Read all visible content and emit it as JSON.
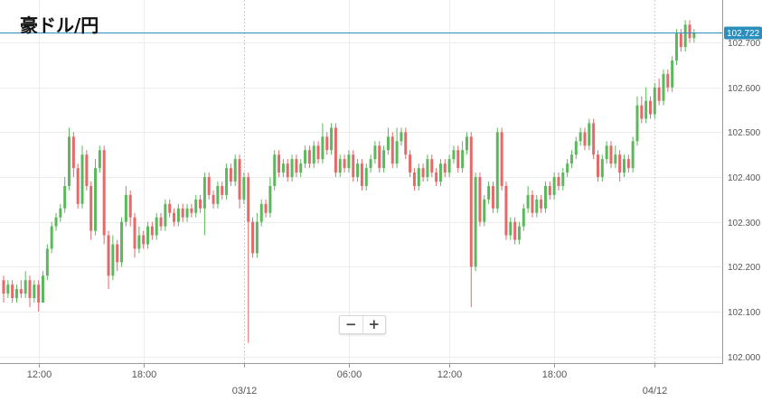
{
  "title": "豪ドル/円",
  "zoom": {
    "minus_label": "−",
    "plus_label": "+"
  },
  "colors": {
    "up": "#5cb85c",
    "down": "#e46a6a",
    "current_line": "#2a8fbd",
    "grid": "#ececec"
  },
  "chart_data": {
    "type": "candlestick",
    "title": "豪ドル/円",
    "ylim": [
      101.985,
      102.795
    ],
    "yticks": [
      "102.000",
      "102.100",
      "102.200",
      "102.300",
      "102.400",
      "102.500",
      "102.600",
      "102.700"
    ],
    "current_price": 102.722,
    "current_price_label": "102.722",
    "x_range": [
      0,
      163
    ],
    "x_ticks": [
      {
        "t": 8,
        "label": "12:00"
      },
      {
        "t": 32,
        "label": "18:00"
      },
      {
        "t": 55,
        "label": "03/12",
        "date": true
      },
      {
        "t": 79,
        "label": "06:00"
      },
      {
        "t": 102,
        "label": "12:00"
      },
      {
        "t": 126,
        "label": "18:00"
      },
      {
        "t": 149,
        "label": "04/12",
        "date": true
      }
    ],
    "grid": true,
    "series": [
      {
        "name": "",
        "candles": [
          [
            102.17,
            102.14,
            102.18,
            102.12
          ],
          [
            102.14,
            102.16,
            102.17,
            102.13
          ],
          [
            102.16,
            102.13,
            102.17,
            102.12
          ],
          [
            102.13,
            102.15,
            102.16,
            102.12
          ],
          [
            102.15,
            102.14,
            102.17,
            102.13
          ],
          [
            102.14,
            102.17,
            102.19,
            102.13
          ],
          [
            102.17,
            102.13,
            102.18,
            102.11
          ],
          [
            102.13,
            102.16,
            102.17,
            102.12
          ],
          [
            102.16,
            102.12,
            102.17,
            102.1
          ],
          [
            102.12,
            102.18,
            102.19,
            102.12
          ],
          [
            102.18,
            102.24,
            102.25,
            102.17
          ],
          [
            102.24,
            102.29,
            102.3,
            102.23
          ],
          [
            102.29,
            102.31,
            102.32,
            102.28
          ],
          [
            102.31,
            102.33,
            102.34,
            102.3
          ],
          [
            102.33,
            102.38,
            102.4,
            102.32
          ],
          [
            102.38,
            102.49,
            102.51,
            102.37
          ],
          [
            102.49,
            102.42,
            102.5,
            102.4
          ],
          [
            102.42,
            102.34,
            102.43,
            102.33
          ],
          [
            102.34,
            102.45,
            102.47,
            102.33
          ],
          [
            102.45,
            102.38,
            102.46,
            102.37
          ],
          [
            102.38,
            102.28,
            102.39,
            102.26
          ],
          [
            102.28,
            102.42,
            102.44,
            102.27
          ],
          [
            102.42,
            102.46,
            102.47,
            102.41
          ],
          [
            102.46,
            102.27,
            102.47,
            102.25
          ],
          [
            102.27,
            102.18,
            102.28,
            102.15
          ],
          [
            102.18,
            102.25,
            102.27,
            102.17
          ],
          [
            102.25,
            102.21,
            102.26,
            102.19
          ],
          [
            102.21,
            102.3,
            102.31,
            102.2
          ],
          [
            102.3,
            102.36,
            102.38,
            102.29
          ],
          [
            102.36,
            102.31,
            102.37,
            102.29
          ],
          [
            102.31,
            102.24,
            102.32,
            102.22
          ],
          [
            102.24,
            102.27,
            102.29,
            102.23
          ],
          [
            102.27,
            102.25,
            102.28,
            102.24
          ],
          [
            102.25,
            102.29,
            102.3,
            102.24
          ],
          [
            102.29,
            102.27,
            102.3,
            102.26
          ],
          [
            102.27,
            102.31,
            102.32,
            102.26
          ],
          [
            102.31,
            102.29,
            102.32,
            102.28
          ],
          [
            102.29,
            102.34,
            102.35,
            102.28
          ],
          [
            102.34,
            102.32,
            102.35,
            102.31
          ],
          [
            102.32,
            102.3,
            102.33,
            102.29
          ],
          [
            102.3,
            102.33,
            102.34,
            102.29
          ],
          [
            102.33,
            102.31,
            102.34,
            102.3
          ],
          [
            102.31,
            102.33,
            102.34,
            102.3
          ],
          [
            102.33,
            102.32,
            102.34,
            102.31
          ],
          [
            102.32,
            102.35,
            102.36,
            102.31
          ],
          [
            102.35,
            102.33,
            102.36,
            102.32
          ],
          [
            102.33,
            102.4,
            102.41,
            102.27
          ],
          [
            102.4,
            102.36,
            102.41,
            102.35
          ],
          [
            102.36,
            102.34,
            102.37,
            102.33
          ],
          [
            102.34,
            102.38,
            102.39,
            102.33
          ],
          [
            102.38,
            102.36,
            102.39,
            102.35
          ],
          [
            102.36,
            102.42,
            102.43,
            102.35
          ],
          [
            102.42,
            102.39,
            102.43,
            102.38
          ],
          [
            102.39,
            102.44,
            102.45,
            102.38
          ],
          [
            102.44,
            102.35,
            102.45,
            102.33
          ],
          [
            102.35,
            102.4,
            102.41,
            102.34
          ],
          [
            102.4,
            102.3,
            102.41,
            102.03
          ],
          [
            102.3,
            102.23,
            102.31,
            102.22
          ],
          [
            102.23,
            102.3,
            102.32,
            102.22
          ],
          [
            102.3,
            102.34,
            102.35,
            102.29
          ],
          [
            102.34,
            102.32,
            102.35,
            102.31
          ],
          [
            102.32,
            102.38,
            102.4,
            102.31
          ],
          [
            102.38,
            102.45,
            102.46,
            102.37
          ],
          [
            102.45,
            102.41,
            102.46,
            102.4
          ],
          [
            102.41,
            102.43,
            102.44,
            102.4
          ],
          [
            102.43,
            102.4,
            102.44,
            102.39
          ],
          [
            102.4,
            102.44,
            102.45,
            102.39
          ],
          [
            102.44,
            102.41,
            102.45,
            102.4
          ],
          [
            102.41,
            102.43,
            102.44,
            102.4
          ],
          [
            102.43,
            102.46,
            102.47,
            102.42
          ],
          [
            102.46,
            102.43,
            102.47,
            102.42
          ],
          [
            102.43,
            102.47,
            102.48,
            102.42
          ],
          [
            102.47,
            102.44,
            102.48,
            102.43
          ],
          [
            102.44,
            102.49,
            102.52,
            102.43
          ],
          [
            102.49,
            102.46,
            102.5,
            102.45
          ],
          [
            102.46,
            102.51,
            102.52,
            102.45
          ],
          [
            102.51,
            102.41,
            102.52,
            102.4
          ],
          [
            102.41,
            102.44,
            102.45,
            102.4
          ],
          [
            102.44,
            102.42,
            102.45,
            102.41
          ],
          [
            102.42,
            102.45,
            102.46,
            102.41
          ],
          [
            102.45,
            102.4,
            102.46,
            102.39
          ],
          [
            102.4,
            102.43,
            102.44,
            102.39
          ],
          [
            102.43,
            102.38,
            102.44,
            102.37
          ],
          [
            102.38,
            102.42,
            102.43,
            102.37
          ],
          [
            102.42,
            102.44,
            102.45,
            102.41
          ],
          [
            102.44,
            102.47,
            102.48,
            102.43
          ],
          [
            102.47,
            102.42,
            102.48,
            102.41
          ],
          [
            102.42,
            102.46,
            102.47,
            102.41
          ],
          [
            102.46,
            102.49,
            102.51,
            102.45
          ],
          [
            102.49,
            102.43,
            102.5,
            102.42
          ],
          [
            102.43,
            102.48,
            102.51,
            102.42
          ],
          [
            102.48,
            102.5,
            102.51,
            102.47
          ],
          [
            102.5,
            102.45,
            102.51,
            102.44
          ],
          [
            102.45,
            102.41,
            102.46,
            102.4
          ],
          [
            102.41,
            102.38,
            102.42,
            102.37
          ],
          [
            102.38,
            102.42,
            102.43,
            102.37
          ],
          [
            102.42,
            102.4,
            102.43,
            102.39
          ],
          [
            102.4,
            102.44,
            102.45,
            102.39
          ],
          [
            102.44,
            102.41,
            102.45,
            102.4
          ],
          [
            102.41,
            102.39,
            102.42,
            102.38
          ],
          [
            102.39,
            102.43,
            102.44,
            102.38
          ],
          [
            102.43,
            102.41,
            102.44,
            102.4
          ],
          [
            102.41,
            102.44,
            102.45,
            102.4
          ],
          [
            102.44,
            102.46,
            102.47,
            102.43
          ],
          [
            102.46,
            102.42,
            102.47,
            102.41
          ],
          [
            102.42,
            102.46,
            102.48,
            102.41
          ],
          [
            102.46,
            102.49,
            102.5,
            102.45
          ],
          [
            102.49,
            102.2,
            102.5,
            102.11
          ],
          [
            102.2,
            102.4,
            102.41,
            102.19
          ],
          [
            102.4,
            102.3,
            102.41,
            102.29
          ],
          [
            102.3,
            102.35,
            102.36,
            102.29
          ],
          [
            102.35,
            102.38,
            102.39,
            102.34
          ],
          [
            102.38,
            102.33,
            102.39,
            102.32
          ],
          [
            102.33,
            102.5,
            102.51,
            102.32
          ],
          [
            102.5,
            102.38,
            102.51,
            102.37
          ],
          [
            102.38,
            102.27,
            102.39,
            102.26
          ],
          [
            102.27,
            102.3,
            102.31,
            102.26
          ],
          [
            102.3,
            102.26,
            102.31,
            102.25
          ],
          [
            102.26,
            102.29,
            102.3,
            102.25
          ],
          [
            102.29,
            102.33,
            102.34,
            102.28
          ],
          [
            102.33,
            102.36,
            102.38,
            102.32
          ],
          [
            102.36,
            102.32,
            102.37,
            102.31
          ],
          [
            102.32,
            102.35,
            102.36,
            102.31
          ],
          [
            102.35,
            102.33,
            102.36,
            102.32
          ],
          [
            102.33,
            102.38,
            102.39,
            102.32
          ],
          [
            102.38,
            102.36,
            102.39,
            102.35
          ],
          [
            102.36,
            102.4,
            102.41,
            102.35
          ],
          [
            102.4,
            102.38,
            102.41,
            102.37
          ],
          [
            102.38,
            102.41,
            102.42,
            102.37
          ],
          [
            102.41,
            102.43,
            102.44,
            102.4
          ],
          [
            102.43,
            102.45,
            102.46,
            102.42
          ],
          [
            102.45,
            102.48,
            102.49,
            102.44
          ],
          [
            102.48,
            102.5,
            102.51,
            102.47
          ],
          [
            102.5,
            102.47,
            102.51,
            102.46
          ],
          [
            102.47,
            102.52,
            102.53,
            102.46
          ],
          [
            102.52,
            102.45,
            102.53,
            102.44
          ],
          [
            102.45,
            102.4,
            102.46,
            102.39
          ],
          [
            102.4,
            102.44,
            102.45,
            102.39
          ],
          [
            102.44,
            102.47,
            102.48,
            102.43
          ],
          [
            102.47,
            102.43,
            102.48,
            102.42
          ],
          [
            102.43,
            102.45,
            102.47,
            102.42
          ],
          [
            102.45,
            102.41,
            102.46,
            102.39
          ],
          [
            102.41,
            102.44,
            102.45,
            102.4
          ],
          [
            102.44,
            102.42,
            102.45,
            102.41
          ],
          [
            102.42,
            102.48,
            102.49,
            102.41
          ],
          [
            102.48,
            102.56,
            102.58,
            102.47
          ],
          [
            102.56,
            102.53,
            102.58,
            102.52
          ],
          [
            102.53,
            102.57,
            102.6,
            102.52
          ],
          [
            102.57,
            102.54,
            102.58,
            102.53
          ],
          [
            102.54,
            102.6,
            102.61,
            102.53
          ],
          [
            102.6,
            102.57,
            102.62,
            102.56
          ],
          [
            102.57,
            102.63,
            102.64,
            102.56
          ],
          [
            102.63,
            102.6,
            102.64,
            102.59
          ],
          [
            102.6,
            102.66,
            102.67,
            102.59
          ],
          [
            102.66,
            102.72,
            102.73,
            102.65
          ],
          [
            102.72,
            102.69,
            102.73,
            102.68
          ],
          [
            102.69,
            102.74,
            102.75,
            102.68
          ],
          [
            102.74,
            102.71,
            102.75,
            102.7
          ],
          [
            102.71,
            102.722,
            102.73,
            102.7
          ]
        ]
      }
    ]
  }
}
